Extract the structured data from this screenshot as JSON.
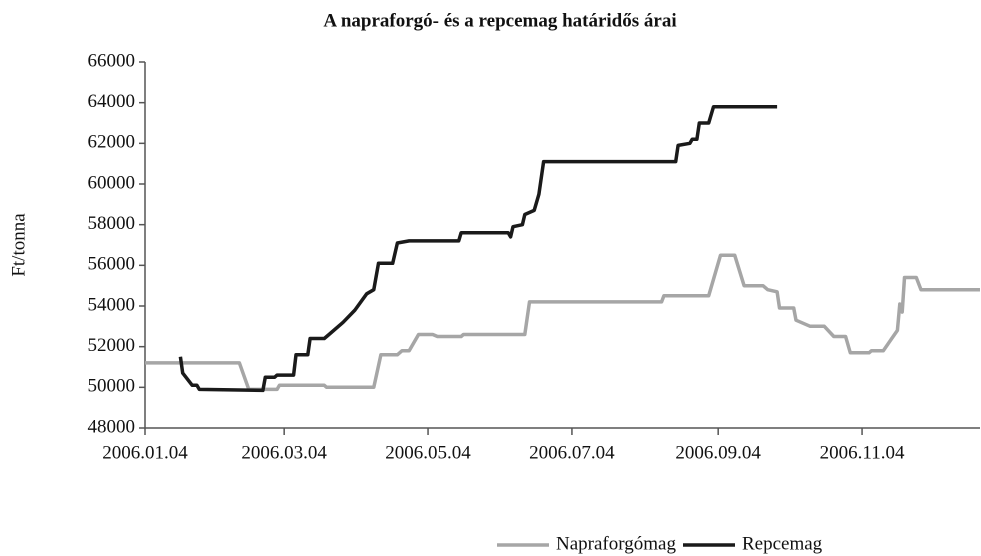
{
  "chart_data": {
    "type": "line",
    "title": "A napraforgó- és a repcemag határidős árai",
    "y_label": "Ft/tonna",
    "xlim": [
      "2006-01-04",
      "2006-12-24"
    ],
    "xticks": [
      {
        "value": "2006-01-04",
        "label": "2006.01.04"
      },
      {
        "value": "2006-03-04",
        "label": "2006.03.04"
      },
      {
        "value": "2006-05-04",
        "label": "2006.05.04"
      },
      {
        "value": "2006-07-04",
        "label": "2006.07.04"
      },
      {
        "value": "2006-09-04",
        "label": "2006.09.04"
      },
      {
        "value": "2006-11-04",
        "label": "2006.11.04"
      }
    ],
    "ylim": [
      48000,
      66000
    ],
    "yticks": [
      48000,
      50000,
      52000,
      54000,
      56000,
      58000,
      60000,
      62000,
      64000,
      66000
    ],
    "grid": false,
    "legend": "bottom",
    "series": [
      {
        "name": "Napraforgómag",
        "color": "#a6a6a6",
        "x": [
          "2006-01-04",
          "2006-02-13",
          "2006-02-17",
          "2006-03-01",
          "2006-03-02",
          "2006-03-21",
          "2006-03-22",
          "2006-04-11",
          "2006-04-14",
          "2006-04-21",
          "2006-04-23",
          "2006-04-26",
          "2006-04-30",
          "2006-05-06",
          "2006-05-08",
          "2006-05-18",
          "2006-05-19",
          "2006-06-14",
          "2006-06-16",
          "2006-08-11",
          "2006-08-12",
          "2006-08-31",
          "2006-09-05",
          "2006-09-11",
          "2006-09-15",
          "2006-09-23",
          "2006-09-25",
          "2006-09-29",
          "2006-09-30",
          "2006-10-06",
          "2006-10-07",
          "2006-10-13",
          "2006-10-19",
          "2006-10-23",
          "2006-10-28",
          "2006-10-30",
          "2006-11-07",
          "2006-11-08",
          "2006-11-13",
          "2006-11-19",
          "2006-11-20",
          "2006-11-21",
          "2006-11-22",
          "2006-11-27",
          "2006-11-29",
          "2006-12-24"
        ],
        "values": [
          51200,
          51200,
          49900,
          49900,
          50100,
          50100,
          50000,
          50000,
          51600,
          51600,
          51800,
          51800,
          52600,
          52600,
          52500,
          52500,
          52600,
          52600,
          54200,
          54200,
          54500,
          54500,
          56500,
          56500,
          55000,
          55000,
          54800,
          54700,
          53900,
          53900,
          53300,
          53000,
          53000,
          52500,
          52500,
          51700,
          51700,
          51800,
          51800,
          52800,
          54100,
          53700,
          55400,
          55400,
          54800,
          54800
        ]
      },
      {
        "name": "Repcemag",
        "color": "#1a1a1a",
        "x": [
          "2006-01-19",
          "2006-01-20",
          "2006-01-24",
          "2006-01-26",
          "2006-01-27",
          "2006-02-23",
          "2006-02-24",
          "2006-02-28",
          "2006-03-01",
          "2006-03-08",
          "2006-03-09",
          "2006-03-14",
          "2006-03-15",
          "2006-03-21",
          "2006-03-23",
          "2006-03-29",
          "2006-04-03",
          "2006-04-08",
          "2006-04-11",
          "2006-04-13",
          "2006-04-19",
          "2006-04-21",
          "2006-04-26",
          "2006-05-17",
          "2006-05-18",
          "2006-06-07",
          "2006-06-08",
          "2006-06-09",
          "2006-06-13",
          "2006-06-14",
          "2006-06-18",
          "2006-06-20",
          "2006-06-22",
          "2006-08-17",
          "2006-08-18",
          "2006-08-23",
          "2006-08-24",
          "2006-08-26",
          "2006-08-27",
          "2006-08-31",
          "2006-09-02",
          "2006-09-29"
        ],
        "values": [
          51500,
          50700,
          50100,
          50100,
          49900,
          49850,
          50500,
          50500,
          50600,
          50600,
          51600,
          51600,
          52400,
          52400,
          52600,
          53200,
          53800,
          54600,
          54800,
          56100,
          56100,
          57100,
          57200,
          57200,
          57600,
          57600,
          57400,
          57900,
          58000,
          58500,
          58700,
          59500,
          61100,
          61100,
          61900,
          62000,
          62200,
          62200,
          63000,
          63000,
          63800,
          63800
        ]
      }
    ]
  }
}
